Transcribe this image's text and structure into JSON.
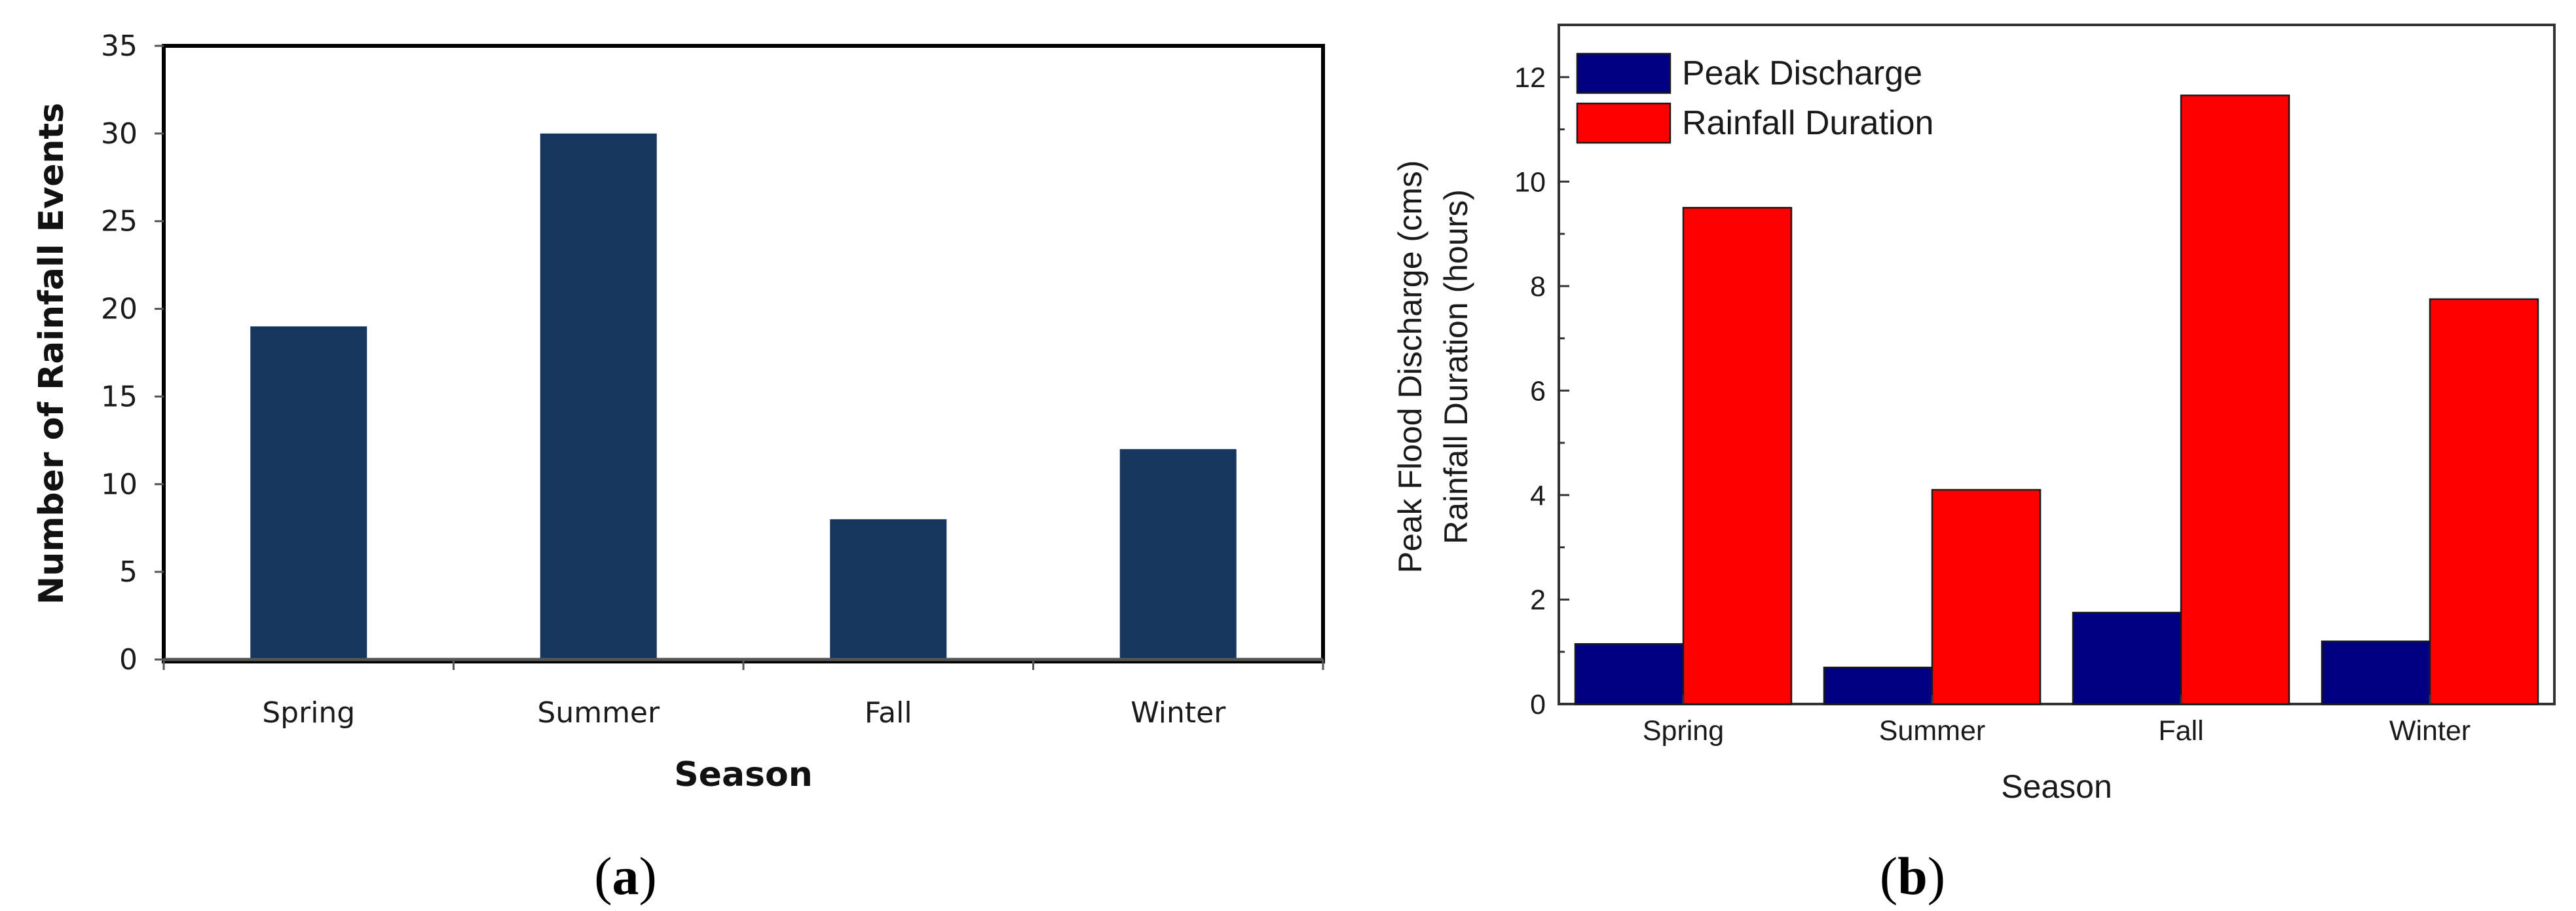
{
  "panel_labels": {
    "a": {
      "open": "(",
      "letter": "a",
      "close": ")"
    },
    "b": {
      "open": "(",
      "letter": "b",
      "close": ")"
    }
  },
  "chart_data": [
    {
      "id": "a",
      "type": "bar",
      "categories": [
        "Spring",
        "Summer",
        "Fall",
        "Winter"
      ],
      "values": [
        19,
        30,
        8,
        12
      ],
      "xlabel": "Season",
      "ylabel": "Number of Rainfall Events",
      "ylim": [
        0,
        35
      ],
      "yticks": [
        0,
        5,
        10,
        15,
        20,
        25,
        30,
        35
      ],
      "colors": [
        "#17365d"
      ],
      "grid": false,
      "legend": "none"
    },
    {
      "id": "b",
      "type": "bar",
      "categories": [
        "Spring",
        "Summer",
        "Fall",
        "Winter"
      ],
      "series": [
        {
          "name": "Peak Discharge",
          "values": [
            1.15,
            0.7,
            1.75,
            1.2
          ],
          "color": "#000080"
        },
        {
          "name": "Rainfall Duration",
          "values": [
            9.5,
            4.1,
            11.65,
            7.75
          ],
          "color": "#ff0000"
        }
      ],
      "xlabel": "Season",
      "ylabel": [
        "Peak Flood Discharge (cms)",
        "Rainfall Duration (hours)"
      ],
      "ylim": [
        0,
        13
      ],
      "yticks": [
        0,
        2,
        4,
        6,
        8,
        10,
        12
      ],
      "grid": false,
      "legend": "top-left"
    }
  ]
}
